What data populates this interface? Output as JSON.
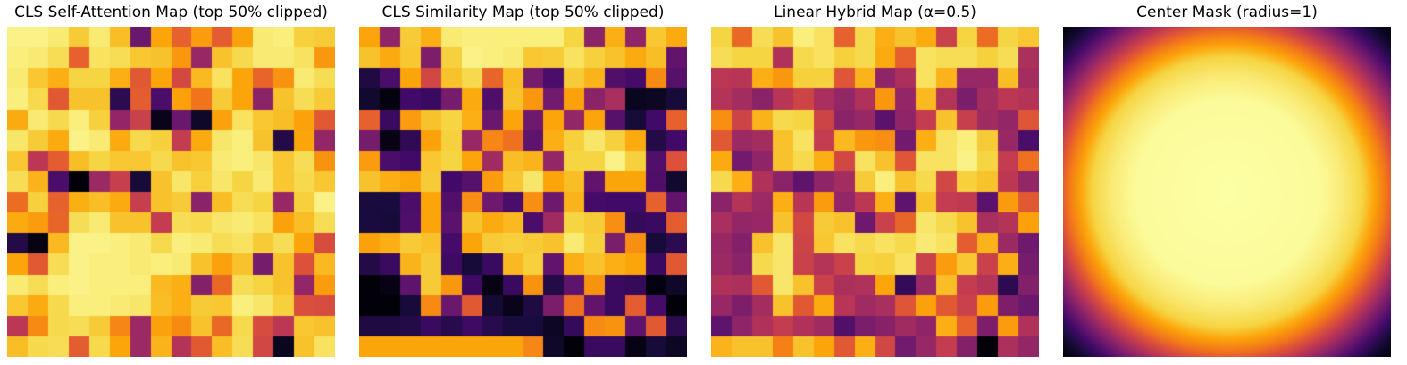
{
  "figure": {
    "background_color": "#ffffff",
    "title_color": "#000000",
    "colormap": "inferno",
    "colormap_anchors": [
      [
        0.0,
        "#000004"
      ],
      [
        0.1,
        "#160b39"
      ],
      [
        0.2,
        "#420a68"
      ],
      [
        0.3,
        "#6a176e"
      ],
      [
        0.4,
        "#932667"
      ],
      [
        0.5,
        "#bc3754"
      ],
      [
        0.6,
        "#dd513a"
      ],
      [
        0.7,
        "#f37819"
      ],
      [
        0.8,
        "#fca50a"
      ],
      [
        0.9,
        "#f6d543"
      ],
      [
        1.0,
        "#fcffa4"
      ]
    ]
  },
  "chart_data": [
    {
      "type": "heatmap",
      "title": "CLS Self-Attention Map (top 50% clipped)",
      "colormap": "inferno",
      "vmin": 0,
      "vmax": 1,
      "grid_size": [
        16,
        16
      ],
      "values": [
        [
          0.97,
          0.97,
          0.95,
          0.88,
          0.95,
          0.85,
          0.3,
          0.8,
          0.64,
          0.78,
          0.63,
          0.79,
          0.95,
          0.96,
          0.89,
          0.88
        ],
        [
          0.96,
          0.95,
          0.92,
          0.64,
          0.93,
          0.92,
          0.87,
          0.86,
          0.77,
          0.41,
          0.86,
          0.91,
          0.95,
          0.95,
          0.93,
          0.77
        ],
        [
          0.95,
          0.87,
          0.82,
          0.9,
          0.9,
          0.82,
          0.62,
          0.8,
          0.57,
          0.84,
          0.93,
          0.8,
          0.65,
          0.76,
          0.95,
          0.92
        ],
        [
          0.96,
          0.91,
          0.62,
          0.86,
          0.86,
          0.15,
          0.63,
          0.22,
          0.79,
          0.69,
          0.88,
          0.8,
          0.38,
          0.86,
          0.92,
          0.88
        ],
        [
          0.81,
          0.95,
          0.91,
          0.96,
          0.89,
          0.4,
          0.54,
          0.04,
          0.3,
          0.07,
          0.79,
          0.93,
          0.87,
          0.85,
          0.79,
          0.62
        ],
        [
          0.94,
          0.88,
          0.81,
          0.97,
          0.95,
          0.81,
          0.91,
          0.89,
          0.52,
          0.81,
          0.94,
          0.96,
          0.86,
          0.13,
          0.8,
          0.4
        ],
        [
          0.87,
          0.5,
          0.63,
          0.85,
          0.9,
          0.87,
          0.87,
          0.91,
          0.86,
          0.87,
          0.95,
          0.96,
          0.94,
          0.87,
          0.92,
          0.76
        ],
        [
          0.92,
          0.83,
          0.22,
          0.01,
          0.42,
          0.53,
          0.1,
          0.86,
          0.94,
          0.89,
          0.94,
          0.9,
          0.95,
          0.87,
          0.91,
          0.87
        ],
        [
          0.67,
          0.89,
          0.64,
          0.82,
          0.85,
          0.81,
          0.53,
          0.86,
          0.88,
          0.38,
          0.85,
          0.92,
          0.9,
          0.41,
          0.89,
          0.97
        ],
        [
          0.81,
          0.78,
          0.65,
          0.92,
          0.95,
          0.86,
          0.86,
          0.52,
          0.92,
          0.91,
          0.94,
          0.95,
          0.93,
          0.79,
          0.85,
          0.92
        ],
        [
          0.13,
          0.03,
          0.84,
          0.97,
          0.97,
          0.96,
          0.95,
          0.91,
          0.96,
          0.95,
          0.92,
          0.93,
          0.88,
          0.92,
          0.8,
          0.58
        ],
        [
          0.8,
          0.62,
          0.92,
          0.97,
          0.96,
          0.96,
          0.95,
          0.96,
          0.95,
          0.86,
          0.79,
          0.86,
          0.33,
          0.86,
          0.6,
          0.84
        ],
        [
          0.95,
          0.92,
          0.96,
          0.97,
          0.96,
          0.96,
          0.96,
          0.84,
          0.82,
          0.36,
          0.66,
          0.92,
          0.9,
          0.86,
          0.4,
          0.78
        ],
        [
          0.87,
          0.81,
          0.91,
          0.96,
          0.96,
          0.95,
          0.94,
          0.85,
          0.82,
          0.88,
          0.87,
          0.96,
          0.94,
          0.89,
          0.59,
          0.58
        ],
        [
          0.5,
          0.74,
          0.91,
          0.92,
          0.88,
          0.73,
          0.42,
          0.79,
          0.74,
          0.86,
          0.66,
          0.91,
          0.58,
          0.5,
          0.87,
          0.86
        ],
        [
          0.85,
          0.91,
          0.92,
          0.63,
          0.91,
          0.8,
          0.42,
          0.83,
          0.48,
          0.62,
          0.85,
          0.92,
          0.56,
          0.05,
          0.86,
          0.93
        ]
      ]
    },
    {
      "type": "heatmap",
      "title": "CLS Similarity Map (top 50% clipped)",
      "colormap": "inferno",
      "vmin": 0,
      "vmax": 1,
      "grid_size": [
        16,
        16
      ],
      "values": [
        [
          0.8,
          0.39,
          0.88,
          0.82,
          0.95,
          0.96,
          0.96,
          0.96,
          0.96,
          0.96,
          0.9,
          0.38,
          0.82,
          0.39,
          0.87,
          0.81
        ],
        [
          0.86,
          0.81,
          0.87,
          0.35,
          0.89,
          0.97,
          0.96,
          0.95,
          0.87,
          0.88,
          0.93,
          0.89,
          0.86,
          0.81,
          0.85,
          0.28
        ],
        [
          0.12,
          0.22,
          0.8,
          0.56,
          0.86,
          0.91,
          0.65,
          0.85,
          0.33,
          0.22,
          0.88,
          0.83,
          0.24,
          0.21,
          0.74,
          0.25
        ],
        [
          0.08,
          0.02,
          0.2,
          0.18,
          0.33,
          0.81,
          0.23,
          0.86,
          0.77,
          0.32,
          0.79,
          0.38,
          0.45,
          0.05,
          0.06,
          0.1
        ],
        [
          0.64,
          0.18,
          0.78,
          0.86,
          0.9,
          0.82,
          0.3,
          0.8,
          0.31,
          0.8,
          0.4,
          0.8,
          0.25,
          0.1,
          0.2,
          0.64
        ],
        [
          0.33,
          0.03,
          0.16,
          0.79,
          0.89,
          0.41,
          0.73,
          0.68,
          0.27,
          0.82,
          0.89,
          0.94,
          0.89,
          0.81,
          0.13,
          0.2
        ],
        [
          0.78,
          0.22,
          0.2,
          0.87,
          0.9,
          0.8,
          0.43,
          0.85,
          0.83,
          0.4,
          0.9,
          0.9,
          0.97,
          0.89,
          0.24,
          0.6
        ],
        [
          0.86,
          0.82,
          0.8,
          0.88,
          0.2,
          0.25,
          0.78,
          0.87,
          0.94,
          0.8,
          0.85,
          0.28,
          0.8,
          0.8,
          0.23,
          0.08
        ],
        [
          0.11,
          0.11,
          0.22,
          0.8,
          0.24,
          0.75,
          0.31,
          0.22,
          0.75,
          0.31,
          0.83,
          0.21,
          0.2,
          0.2,
          0.64,
          0.28
        ],
        [
          0.11,
          0.1,
          0.23,
          0.8,
          0.26,
          0.86,
          0.81,
          0.84,
          0.22,
          0.43,
          0.9,
          0.88,
          0.75,
          0.17,
          0.18,
          0.63
        ],
        [
          0.79,
          0.82,
          0.88,
          0.86,
          0.21,
          0.8,
          0.88,
          0.89,
          0.88,
          0.86,
          0.95,
          0.89,
          0.34,
          0.75,
          0.1,
          0.15
        ],
        [
          0.13,
          0.18,
          0.83,
          0.88,
          0.19,
          0.1,
          0.18,
          0.84,
          0.89,
          0.28,
          0.82,
          0.86,
          0.82,
          0.8,
          0.18,
          0.62
        ],
        [
          0.01,
          0.03,
          0.27,
          0.88,
          0.77,
          0.19,
          0.03,
          0.18,
          0.76,
          0.13,
          0.27,
          0.76,
          0.18,
          0.17,
          0.02,
          0.07
        ],
        [
          0.01,
          0.01,
          0.1,
          0.74,
          0.3,
          0.62,
          0.09,
          0.04,
          0.12,
          0.34,
          0.68,
          0.28,
          0.18,
          0.63,
          0.21,
          0.01
        ],
        [
          0.12,
          0.12,
          0.13,
          0.18,
          0.14,
          0.19,
          0.14,
          0.11,
          0.11,
          0.06,
          0.17,
          0.74,
          0.76,
          0.27,
          0.62,
          0.15
        ],
        [
          0.8,
          0.8,
          0.8,
          0.8,
          0.8,
          0.8,
          0.8,
          0.8,
          0.73,
          0.07,
          0.01,
          0.18,
          0.18,
          0.03,
          0.1,
          0.06
        ]
      ]
    },
    {
      "type": "heatmap",
      "title": "Linear Hybrid Map (α=0.5)",
      "colormap": "inferno",
      "vmin": 0,
      "vmax": 1,
      "grid_size": [
        16,
        16
      ],
      "values": [
        [
          0.9,
          0.66,
          0.92,
          0.86,
          0.96,
          0.93,
          0.64,
          0.91,
          0.82,
          0.86,
          0.81,
          0.54,
          0.9,
          0.67,
          0.9,
          0.87
        ],
        [
          0.92,
          0.9,
          0.9,
          0.47,
          0.91,
          0.93,
          0.89,
          0.91,
          0.81,
          0.64,
          0.93,
          0.92,
          0.92,
          0.89,
          0.92,
          0.46
        ],
        [
          0.5,
          0.49,
          0.82,
          0.77,
          0.89,
          0.89,
          0.61,
          0.83,
          0.39,
          0.46,
          0.93,
          0.83,
          0.41,
          0.41,
          0.85,
          0.44
        ],
        [
          0.48,
          0.44,
          0.38,
          0.49,
          0.55,
          0.45,
          0.4,
          0.47,
          0.77,
          0.4,
          0.84,
          0.48,
          0.34,
          0.44,
          0.5,
          0.48
        ],
        [
          0.75,
          0.55,
          0.83,
          0.91,
          0.9,
          0.55,
          0.38,
          0.41,
          0.26,
          0.39,
          0.52,
          0.86,
          0.53,
          0.43,
          0.4,
          0.61
        ],
        [
          0.62,
          0.42,
          0.44,
          0.86,
          0.93,
          0.52,
          0.84,
          0.77,
          0.75,
          0.32,
          0.82,
          0.93,
          0.96,
          0.88,
          0.41,
          0.22
        ],
        [
          0.81,
          0.32,
          0.39,
          0.86,
          0.91,
          0.82,
          0.56,
          0.93,
          0.86,
          0.61,
          0.93,
          0.93,
          0.97,
          0.9,
          0.52,
          0.68
        ],
        [
          0.91,
          0.82,
          0.47,
          0.38,
          0.27,
          0.39,
          0.44,
          0.88,
          0.96,
          0.86,
          0.91,
          0.56,
          0.89,
          0.86,
          0.5,
          0.4
        ],
        [
          0.38,
          0.48,
          0.42,
          0.82,
          0.49,
          0.78,
          0.4,
          0.5,
          0.82,
          0.27,
          0.86,
          0.52,
          0.51,
          0.26,
          0.78,
          0.62
        ],
        [
          0.45,
          0.4,
          0.41,
          0.86,
          0.56,
          0.88,
          0.86,
          0.31,
          0.54,
          0.65,
          0.94,
          0.91,
          0.86,
          0.45,
          0.48,
          0.79
        ],
        [
          0.41,
          0.36,
          0.86,
          0.94,
          0.55,
          0.87,
          0.93,
          0.91,
          0.93,
          0.91,
          0.95,
          0.93,
          0.63,
          0.83,
          0.42,
          0.31
        ],
        [
          0.42,
          0.38,
          0.91,
          0.94,
          0.54,
          0.48,
          0.54,
          0.9,
          0.89,
          0.93,
          0.54,
          0.78,
          0.87,
          0.54,
          0.82,
          0.33
        ],
        [
          0.47,
          0.46,
          0.62,
          0.94,
          0.86,
          0.54,
          0.46,
          0.47,
          0.8,
          0.17,
          0.42,
          0.85,
          0.52,
          0.48,
          0.15,
          0.36
        ],
        [
          0.41,
          0.35,
          0.44,
          0.86,
          0.62,
          0.81,
          0.49,
          0.43,
          0.45,
          0.61,
          0.79,
          0.62,
          0.54,
          0.78,
          0.35,
          0.3
        ],
        [
          0.27,
          0.39,
          0.47,
          0.52,
          0.47,
          0.43,
          0.24,
          0.34,
          0.37,
          0.43,
          0.39,
          0.82,
          0.64,
          0.35,
          0.78,
          0.47
        ],
        [
          0.83,
          0.86,
          0.86,
          0.72,
          0.86,
          0.8,
          0.62,
          0.82,
          0.56,
          0.32,
          0.41,
          0.52,
          0.36,
          0.01,
          0.46,
          0.4
        ]
      ]
    },
    {
      "type": "radial_gradient",
      "title": "Center Mask (radius=1)",
      "colormap": "inferno",
      "radius": 1,
      "center_value": 1.0,
      "corner_value": 0.0,
      "profile_stops": [
        [
          0.0,
          1.0
        ],
        [
          0.4,
          0.99
        ],
        [
          0.5,
          0.95
        ],
        [
          0.58,
          0.9
        ],
        [
          0.63,
          0.8
        ],
        [
          0.68,
          0.7
        ],
        [
          0.72,
          0.6
        ],
        [
          0.76,
          0.5
        ],
        [
          0.8,
          0.4
        ],
        [
          0.84,
          0.3
        ],
        [
          0.88,
          0.2
        ],
        [
          0.93,
          0.1
        ],
        [
          0.98,
          0.03
        ],
        [
          1.0,
          0.0
        ]
      ]
    }
  ]
}
